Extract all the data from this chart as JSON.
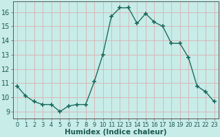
{
  "x": [
    0,
    1,
    2,
    3,
    4,
    5,
    6,
    7,
    8,
    9,
    10,
    11,
    12,
    13,
    14,
    15,
    16,
    17,
    18,
    19,
    20,
    21,
    22,
    23
  ],
  "y": [
    10.8,
    10.1,
    9.7,
    9.5,
    9.5,
    9.0,
    9.4,
    9.5,
    9.5,
    11.1,
    13.0,
    15.7,
    16.3,
    16.3,
    15.2,
    15.9,
    15.3,
    15.0,
    13.8,
    13.8,
    12.8,
    10.8,
    10.4,
    9.7
  ],
  "line_color": "#1a6b5e",
  "marker": "+",
  "marker_size": 5,
  "marker_lw": 1.2,
  "bg_color": "#c8ece8",
  "grid_color": "#d8b8b8",
  "xlabel": "Humidex (Indice chaleur)",
  "xlim": [
    -0.5,
    23.5
  ],
  "ylim": [
    8.5,
    16.75
  ],
  "xtick_labels": [
    "0",
    "1",
    "2",
    "3",
    "4",
    "5",
    "6",
    "7",
    "8",
    "9",
    "10",
    "11",
    "12",
    "13",
    "14",
    "15",
    "16",
    "17",
    "18",
    "19",
    "20",
    "21",
    "22",
    "23"
  ],
  "yticks": [
    9,
    10,
    11,
    12,
    13,
    14,
    15,
    16
  ],
  "xlabel_fontsize": 7.5,
  "xtick_fontsize": 6,
  "ytick_fontsize": 7
}
